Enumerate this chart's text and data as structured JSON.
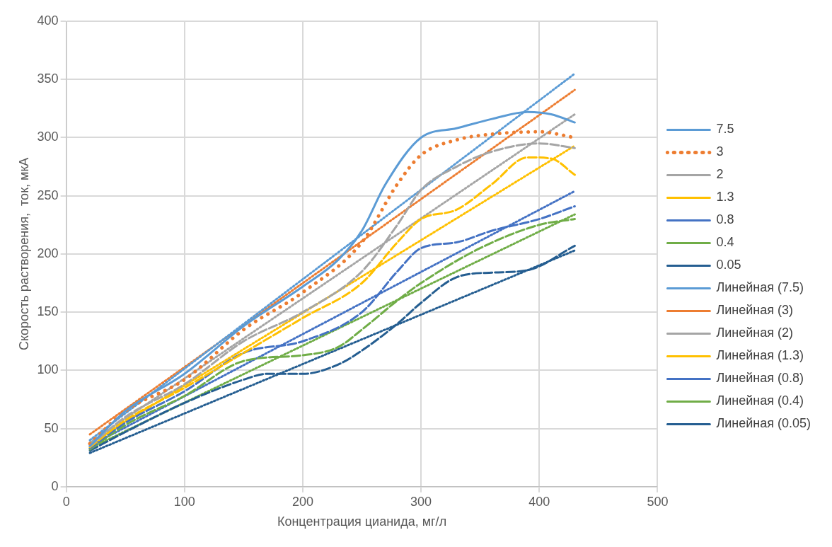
{
  "chart_data": {
    "type": "line",
    "xlabel": "Концентрация цианида, мг/л",
    "ylabel": "Скорость растворения,  ток, мкА",
    "xlim": [
      0,
      500
    ],
    "xticks": [
      0,
      100,
      200,
      300,
      400,
      500
    ],
    "ylim": [
      0,
      400
    ],
    "yticks": [
      0,
      50,
      100,
      150,
      200,
      250,
      300,
      350,
      400
    ],
    "grid": true,
    "legend": "right",
    "marker": "none",
    "series": [
      {
        "name": "7.5",
        "color": "#5b9bd5",
        "line_style": "solid",
        "x": [
          20,
          50,
          100,
          150,
          200,
          230,
          250,
          270,
          300,
          330,
          360,
          390,
          410,
          430
        ],
        "values": [
          35,
          65,
          97,
          138,
          172,
          195,
          220,
          260,
          300,
          308,
          316,
          322,
          320,
          313
        ]
      },
      {
        "name": "3",
        "color": "#ed7d31",
        "line_style": "dotted",
        "x": [
          20,
          50,
          100,
          150,
          200,
          250,
          280,
          300,
          330,
          360,
          400,
          430
        ],
        "values": [
          37,
          65,
          92,
          135,
          167,
          210,
          260,
          285,
          298,
          303,
          305,
          300
        ]
      },
      {
        "name": "2",
        "color": "#a5a5a5",
        "line_style": "dashed",
        "x": [
          20,
          50,
          100,
          150,
          200,
          250,
          280,
          300,
          330,
          360,
          400,
          430
        ],
        "values": [
          35,
          60,
          88,
          125,
          150,
          185,
          225,
          255,
          275,
          288,
          295,
          291
        ]
      },
      {
        "name": "1.3",
        "color": "#ffc000",
        "line_style": "dashed",
        "x": [
          20,
          50,
          100,
          150,
          200,
          250,
          280,
          300,
          330,
          360,
          390,
          410,
          430
        ],
        "values": [
          34,
          57,
          85,
          115,
          145,
          175,
          210,
          230,
          238,
          260,
          283,
          282,
          268
        ]
      },
      {
        "name": "0.8",
        "color": "#4472c4",
        "line_style": "dashed",
        "x": [
          20,
          50,
          100,
          150,
          200,
          250,
          280,
          300,
          330,
          360,
          400,
          430
        ],
        "values": [
          33,
          55,
          82,
          115,
          125,
          150,
          185,
          205,
          210,
          220,
          230,
          241
        ]
      },
      {
        "name": "0.4",
        "color": "#70ad47",
        "line_style": "dashed",
        "x": [
          20,
          50,
          100,
          150,
          200,
          230,
          250,
          280,
          300,
          350,
          400,
          430
        ],
        "values": [
          32,
          53,
          78,
          108,
          113,
          120,
          135,
          160,
          175,
          205,
          225,
          230
        ]
      },
      {
        "name": "0.05",
        "color": "#255e91",
        "line_style": "dashed",
        "x": [
          20,
          50,
          100,
          150,
          170,
          200,
          230,
          250,
          280,
          300,
          330,
          360,
          390,
          430
        ],
        "values": [
          31,
          47,
          72,
          92,
          97,
          97,
          105,
          117,
          140,
          158,
          180,
          184,
          186,
          207
        ]
      },
      {
        "name": "Линейная (7.5)",
        "color": "#5b9bd5",
        "line_style": "dotted",
        "x": [
          20,
          430
        ],
        "values": [
          40,
          355
        ]
      },
      {
        "name": "Линейная (3)",
        "color": "#ed7d31",
        "line_style": "dotted",
        "x": [
          20,
          430
        ],
        "values": [
          45,
          341
        ]
      },
      {
        "name": "Линейная (2)",
        "color": "#a5a5a5",
        "line_style": "dotted",
        "x": [
          20,
          430
        ],
        "values": [
          38,
          320
        ]
      },
      {
        "name": "Линейная (1.3)",
        "color": "#ffc000",
        "line_style": "dotted",
        "x": [
          20,
          430
        ],
        "values": [
          37,
          293
        ]
      },
      {
        "name": "Линейная (0.8)",
        "color": "#4472c4",
        "line_style": "dotted",
        "x": [
          20,
          430
        ],
        "values": [
          35,
          254
        ]
      },
      {
        "name": "Линейная (0.4)",
        "color": "#70ad47",
        "line_style": "dotted",
        "x": [
          20,
          430
        ],
        "values": [
          33,
          234
        ]
      },
      {
        "name": "Линейная (0.05)",
        "color": "#255e91",
        "line_style": "dotted",
        "x": [
          20,
          430
        ],
        "values": [
          29,
          203
        ]
      }
    ]
  }
}
